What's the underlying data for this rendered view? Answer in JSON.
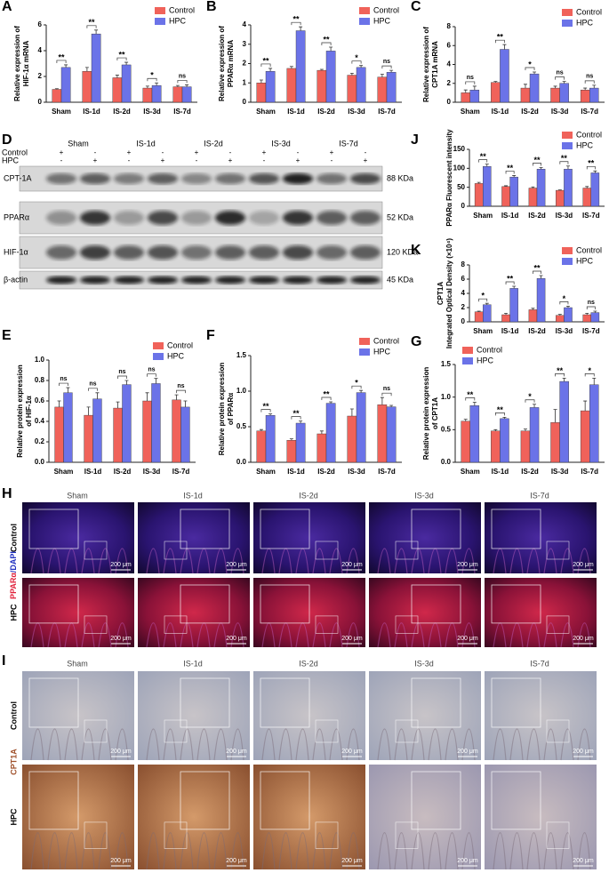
{
  "chart_data": [
    {
      "type": "bar",
      "panel": "A",
      "ylabel": [
        "Relative expression of",
        "HIF-1α mRNA"
      ],
      "categories": [
        "Sham",
        "IS-1d",
        "IS-2d",
        "IS-3d",
        "IS-7d"
      ],
      "series": [
        {
          "name": "Control",
          "color": "#f0625a",
          "values": [
            1.0,
            2.4,
            1.9,
            1.1,
            1.2
          ],
          "errors": [
            0.05,
            0.3,
            0.2,
            0.15,
            0.1
          ]
        },
        {
          "name": "HPC",
          "color": "#6b73e8",
          "values": [
            2.7,
            5.3,
            2.9,
            1.3,
            1.2
          ],
          "errors": [
            0.2,
            0.3,
            0.2,
            0.2,
            0.15
          ]
        }
      ],
      "significance": [
        "**",
        "**",
        "**",
        "*",
        "ns"
      ],
      "ylim": [
        0,
        6
      ],
      "yticks": [
        0,
        2,
        4,
        6
      ],
      "legend": "upper right"
    },
    {
      "type": "bar",
      "panel": "B",
      "ylabel": [
        "Relative expression of",
        "PPARα mRNA"
      ],
      "categories": [
        "Sham",
        "IS-1d",
        "IS-2d",
        "IS-3d",
        "IS-7d"
      ],
      "series": [
        {
          "name": "Control",
          "color": "#f0625a",
          "values": [
            1.0,
            1.75,
            1.65,
            1.4,
            1.3
          ],
          "errors": [
            0.15,
            0.1,
            0.05,
            0.1,
            0.15
          ]
        },
        {
          "name": "HPC",
          "color": "#6b73e8",
          "values": [
            1.6,
            3.7,
            2.65,
            1.8,
            1.55
          ],
          "errors": [
            0.15,
            0.2,
            0.2,
            0.1,
            0.1
          ]
        }
      ],
      "significance": [
        "**",
        "**",
        "**",
        "*",
        "ns"
      ],
      "ylim": [
        0,
        4
      ],
      "yticks": [
        0,
        1,
        2,
        3,
        4
      ],
      "legend": "upper right"
    },
    {
      "type": "bar",
      "panel": "C",
      "ylabel": [
        "Relative expression of",
        "CPT1A mRNA"
      ],
      "categories": [
        "Sham",
        "IS-1d",
        "IS-2d",
        "IS-3d",
        "IS-7d"
      ],
      "series": [
        {
          "name": "Control",
          "color": "#f0625a",
          "values": [
            1.0,
            2.1,
            1.5,
            1.5,
            1.3
          ],
          "errors": [
            0.3,
            0.1,
            0.4,
            0.2,
            0.2
          ]
        },
        {
          "name": "HPC",
          "color": "#6b73e8",
          "values": [
            1.3,
            5.6,
            3.0,
            2.0,
            1.5
          ],
          "errors": [
            0.4,
            0.5,
            0.2,
            0.2,
            0.3
          ]
        }
      ],
      "significance": [
        "ns",
        "**",
        "*",
        "ns",
        "ns"
      ],
      "ylim": [
        0,
        8
      ],
      "yticks": [
        0,
        2,
        4,
        6,
        8
      ],
      "legend": "upper right"
    },
    {
      "type": "bar",
      "panel": "J",
      "ylabel": [
        "PPARα Fluorescent intensity"
      ],
      "categories": [
        "Sham",
        "IS-1d",
        "IS-2d",
        "IS-3d",
        "IS-7d"
      ],
      "series": [
        {
          "name": "Control",
          "color": "#f0625a",
          "values": [
            60,
            52,
            48,
            42,
            48
          ],
          "errors": [
            3,
            2,
            3,
            1,
            4
          ]
        },
        {
          "name": "HPC",
          "color": "#6b73e8",
          "values": [
            105,
            77,
            98,
            98,
            88
          ],
          "errors": [
            6,
            4,
            4,
            8,
            5
          ]
        }
      ],
      "significance": [
        "**",
        "**",
        "**",
        "**",
        "**"
      ],
      "ylim": [
        0,
        150
      ],
      "yticks": [
        0,
        50,
        100,
        150
      ],
      "legend": "upper right"
    },
    {
      "type": "bar",
      "panel": "K",
      "ylabel": [
        "CPT1A",
        "Integrated Optical Density (×10⁴)"
      ],
      "categories": [
        "Sham",
        "IS-1d",
        "IS-2d",
        "IS-3d",
        "IS-7d"
      ],
      "series": [
        {
          "name": "Control",
          "color": "#f0625a",
          "values": [
            1.4,
            1.0,
            1.7,
            0.9,
            1.0
          ],
          "errors": [
            0.1,
            0.2,
            0.2,
            0.15,
            0.2
          ]
        },
        {
          "name": "HPC",
          "color": "#6b73e8",
          "values": [
            2.4,
            4.7,
            6.1,
            2.0,
            1.3
          ],
          "errors": [
            0.2,
            0.3,
            0.4,
            0.2,
            0.2
          ]
        }
      ],
      "significance": [
        "*",
        "**",
        "**",
        "*",
        "ns"
      ],
      "ylim": [
        0,
        8
      ],
      "yticks": [
        0,
        2,
        4,
        6,
        8
      ],
      "legend": "upper right"
    },
    {
      "type": "bar",
      "panel": "E",
      "ylabel": [
        "Relative protein expression",
        "of HIF-1α"
      ],
      "categories": [
        "Sham",
        "IS-1d",
        "IS-2d",
        "IS-3d",
        "IS-7d"
      ],
      "series": [
        {
          "name": "Control",
          "color": "#f0625a",
          "values": [
            0.54,
            0.46,
            0.53,
            0.6,
            0.61
          ],
          "errors": [
            0.06,
            0.08,
            0.06,
            0.08,
            0.05
          ]
        },
        {
          "name": "HPC",
          "color": "#6b73e8",
          "values": [
            0.68,
            0.62,
            0.76,
            0.77,
            0.54
          ],
          "errors": [
            0.05,
            0.06,
            0.04,
            0.05,
            0.06
          ]
        }
      ],
      "significance": [
        "ns",
        "ns",
        "ns",
        "ns",
        "ns"
      ],
      "ylim": [
        0,
        1
      ],
      "yticks": [
        {
          "value": 0,
          "label": "0.0"
        },
        0.2,
        0.4,
        0.6,
        0.8,
        {
          "value": 1,
          "label": "1.0"
        }
      ],
      "legend": "upper right"
    },
    {
      "type": "bar",
      "panel": "F",
      "ylabel": [
        "Relative protein expression",
        "of PPARα"
      ],
      "categories": [
        "Sham",
        "IS-1d",
        "IS-2d",
        "IS-3d",
        "IS-7d"
      ],
      "series": [
        {
          "name": "Control",
          "color": "#f0625a",
          "values": [
            0.44,
            0.31,
            0.4,
            0.65,
            0.81
          ],
          "errors": [
            0.02,
            0.02,
            0.04,
            0.1,
            0.1
          ]
        },
        {
          "name": "HPC",
          "color": "#6b73e8",
          "values": [
            0.66,
            0.55,
            0.83,
            0.98,
            0.78
          ],
          "errors": [
            0.02,
            0.03,
            0.02,
            0.03,
            0.02
          ]
        }
      ],
      "significance": [
        "**",
        "**",
        "**",
        "*",
        "ns"
      ],
      "ylim": [
        0,
        1.5
      ],
      "yticks": [
        {
          "value": 0,
          "label": "0.0"
        },
        0.5,
        {
          "value": 1,
          "label": "1.0"
        },
        1.5
      ],
      "legend": "upper right"
    },
    {
      "type": "bar",
      "panel": "G",
      "ylabel": [
        "Relative protein expression",
        "of CPT1A"
      ],
      "categories": [
        "Sham",
        "IS-1d",
        "IS-2d",
        "IS-3d",
        "IS-7d"
      ],
      "series": [
        {
          "name": "Control",
          "color": "#f0625a",
          "values": [
            0.63,
            0.48,
            0.48,
            0.61,
            0.79
          ],
          "errors": [
            0.03,
            0.02,
            0.03,
            0.2,
            0.15
          ]
        },
        {
          "name": "HPC",
          "color": "#6b73e8",
          "values": [
            0.87,
            0.67,
            0.84,
            1.24,
            1.19
          ],
          "errors": [
            0.05,
            0.02,
            0.05,
            0.05,
            0.1
          ]
        }
      ],
      "significance": [
        "**",
        "**",
        "*",
        "**",
        "*"
      ],
      "ylim": [
        0,
        1.5
      ],
      "yticks": [
        {
          "value": 0,
          "label": "0.0"
        },
        0.5,
        {
          "value": 1,
          "label": "1.0"
        },
        1.5
      ],
      "legend": "upper left"
    }
  ],
  "western_blot": {
    "panel": "D",
    "groups": [
      "Sham",
      "IS-1d",
      "IS-2d",
      "IS-3d",
      "IS-7d"
    ],
    "conditions": [
      "Control",
      "HPC"
    ],
    "signs": [
      [
        "+",
        "-"
      ],
      [
        "-",
        "+"
      ]
    ],
    "bands": [
      {
        "protein": "CPT-1A",
        "size": "88 KDa"
      },
      {
        "protein": "PPARα",
        "size": "52 KDa"
      },
      {
        "protein": "HIF-1α",
        "size": "120 KDa"
      },
      {
        "protein": "β-actin",
        "size": "45 KDa"
      }
    ]
  },
  "fluorescence": {
    "panel": "H",
    "columns": [
      "Sham",
      "IS-1d",
      "IS-2d",
      "IS-3d",
      "IS-7d"
    ],
    "rows": [
      "Control",
      "HPC"
    ],
    "stain": [
      "PPARα",
      "/DAPI"
    ],
    "scale_bar": "200 μm"
  },
  "ihc": {
    "panel": "I",
    "columns": [
      "Sham",
      "IS-1d",
      "IS-2d",
      "IS-3d",
      "IS-7d"
    ],
    "rows": [
      "Control",
      "HPC"
    ],
    "stain": "CPT1A",
    "scale_bar": "200 μm"
  }
}
